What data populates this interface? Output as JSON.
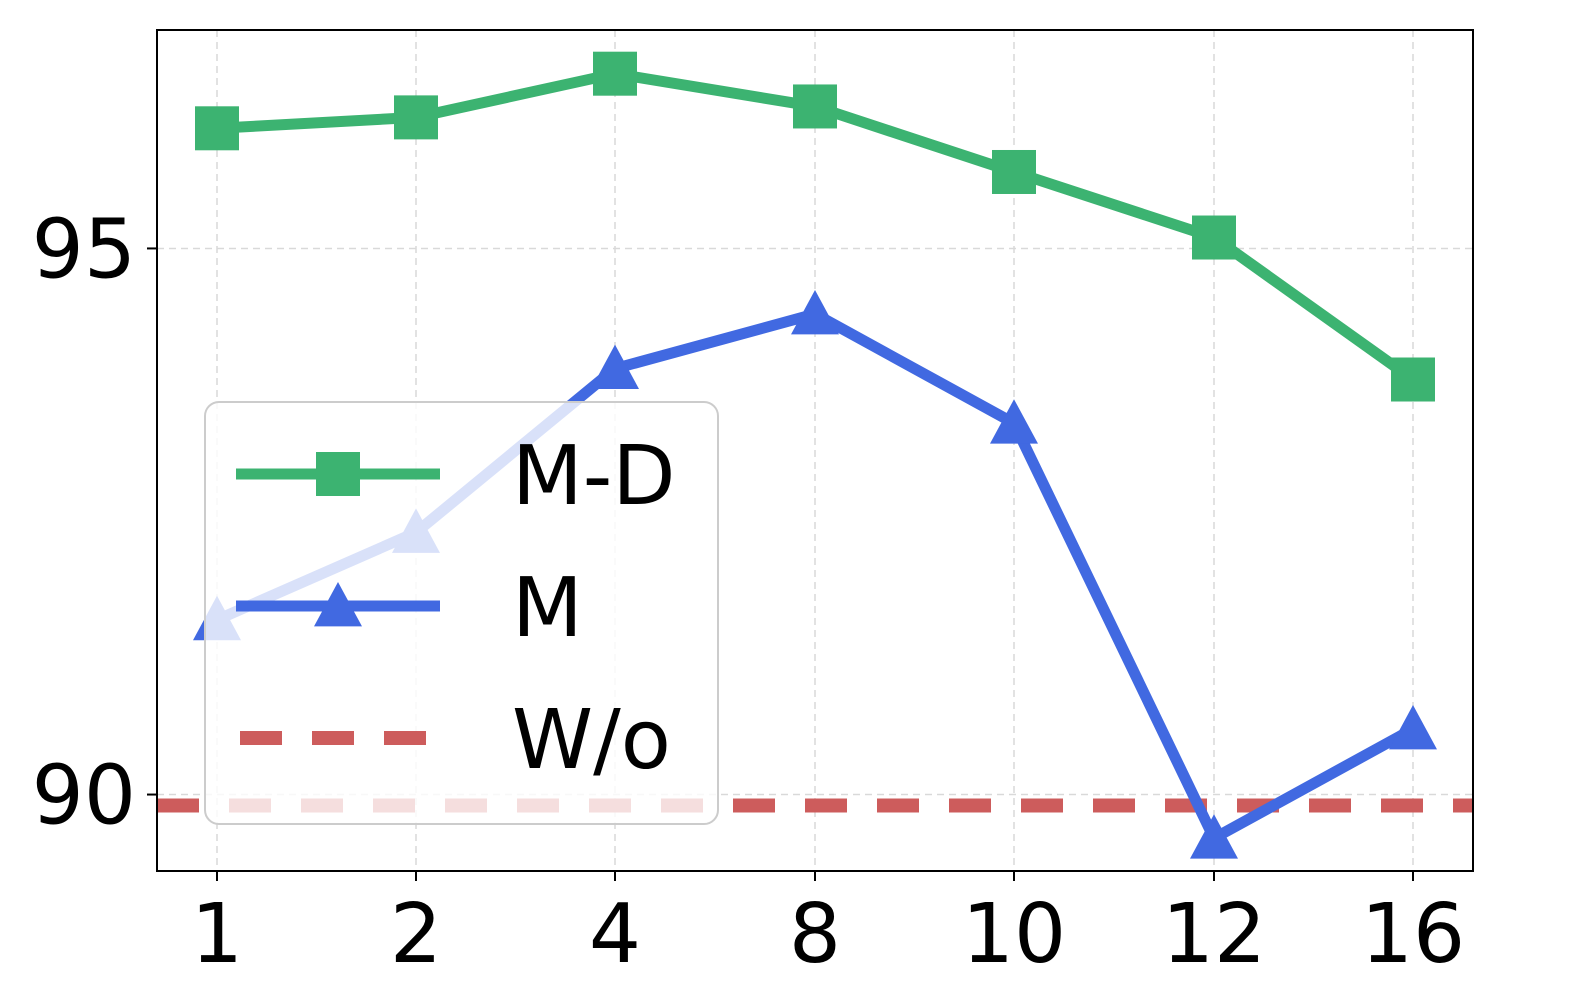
{
  "chart_data": {
    "type": "line",
    "title": "",
    "xlabel": "",
    "ylabel": "",
    "categories": [
      "1",
      "2",
      "4",
      "8",
      "10",
      "12",
      "16"
    ],
    "ylim": [
      89.3,
      97.0
    ],
    "yticks": [
      90,
      95
    ],
    "ytick_labels": [
      "90",
      "95"
    ],
    "grid": true,
    "legend_position": "center-left",
    "series": [
      {
        "name": "M-D",
        "values": [
          96.1,
          96.2,
          96.6,
          96.3,
          95.7,
          95.1,
          93.8
        ],
        "color": "#3cb371",
        "marker": "square",
        "linestyle": "solid"
      },
      {
        "name": "M",
        "values": [
          91.6,
          92.4,
          93.9,
          94.4,
          93.4,
          89.6,
          90.6
        ],
        "color": "#4169e1",
        "marker": "triangle",
        "linestyle": "solid"
      },
      {
        "name": "W/o",
        "values": [
          89.9,
          89.9,
          89.9,
          89.9,
          89.9,
          89.9,
          89.9
        ],
        "color": "#cd5c5c",
        "marker": "none",
        "linestyle": "dashed"
      }
    ]
  }
}
